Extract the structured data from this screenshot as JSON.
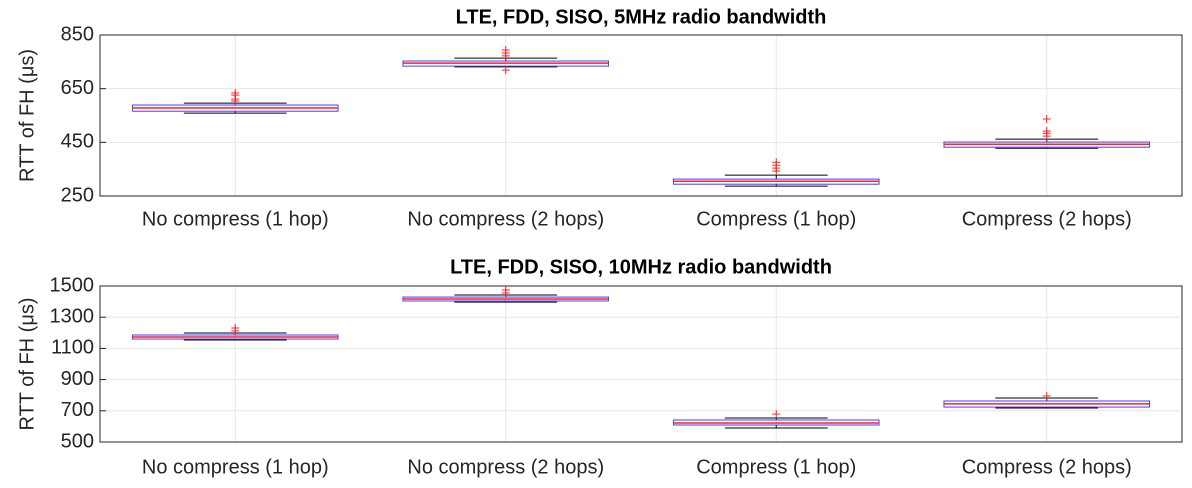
{
  "chart_data": [
    {
      "type": "box",
      "title": "LTE, FDD, SISO, 5MHz radio bandwidth",
      "ylabel": "RTT of FH (μs)",
      "categories": [
        "No compress (1 hop)",
        "No compress (2 hops)",
        "Compress (1 hop)",
        "Compress (2 hops)"
      ],
      "boxes": [
        {
          "whisker_low": 559,
          "q1": 566,
          "median": 578,
          "q3": 589,
          "whisker_high": 596,
          "outliers": [
            604,
            611,
            626,
            634
          ]
        },
        {
          "whisker_low": 731,
          "q1": 734,
          "median": 745,
          "q3": 753,
          "whisker_high": 764,
          "outliers": [
            719,
            772,
            783,
            794
          ]
        },
        {
          "whisker_low": 287,
          "q1": 294,
          "median": 305,
          "q3": 313,
          "whisker_high": 328,
          "outliers": [
            343,
            354,
            365,
            376
          ]
        },
        {
          "whisker_low": 428,
          "q1": 432,
          "median": 443,
          "q3": 451,
          "whisker_high": 462,
          "outliers": [
            473,
            484,
            492,
            537
          ]
        }
      ],
      "box_color": "#4040ff",
      "median_color": "#ff2020",
      "whisker_color": "#000000",
      "outlier_color": "#ff2020",
      "ylim": [
        250,
        850
      ],
      "yticks": [
        250,
        450,
        650,
        850
      ],
      "grid": true
    },
    {
      "type": "box",
      "title": "LTE, FDD, SISO, 10MHz radio bandwidth",
      "ylabel": "RTT of FH (μs)",
      "categories": [
        "No compress (1 hop)",
        "No compress (2 hops)",
        "Compress (1 hop)",
        "Compress (2 hops)"
      ],
      "boxes": [
        {
          "whisker_low": 1154,
          "q1": 1160,
          "median": 1173,
          "q3": 1186,
          "whisker_high": 1199,
          "outliers": [
            1212,
            1231
          ]
        },
        {
          "whisker_low": 1397,
          "q1": 1404,
          "median": 1417,
          "q3": 1429,
          "whisker_high": 1442,
          "outliers": [
            1455,
            1474
          ]
        },
        {
          "whisker_low": 590,
          "q1": 609,
          "median": 622,
          "q3": 641,
          "whisker_high": 654,
          "outliers": [
            679
          ]
        },
        {
          "whisker_low": 718,
          "q1": 724,
          "median": 744,
          "q3": 763,
          "whisker_high": 782,
          "outliers": [
            795
          ]
        }
      ],
      "box_color": "#4040ff",
      "median_color": "#ff2020",
      "whisker_color": "#000000",
      "outlier_color": "#ff2020",
      "ylim": [
        500,
        1500
      ],
      "yticks": [
        500,
        700,
        900,
        1100,
        1300,
        1500
      ],
      "grid": true
    }
  ]
}
